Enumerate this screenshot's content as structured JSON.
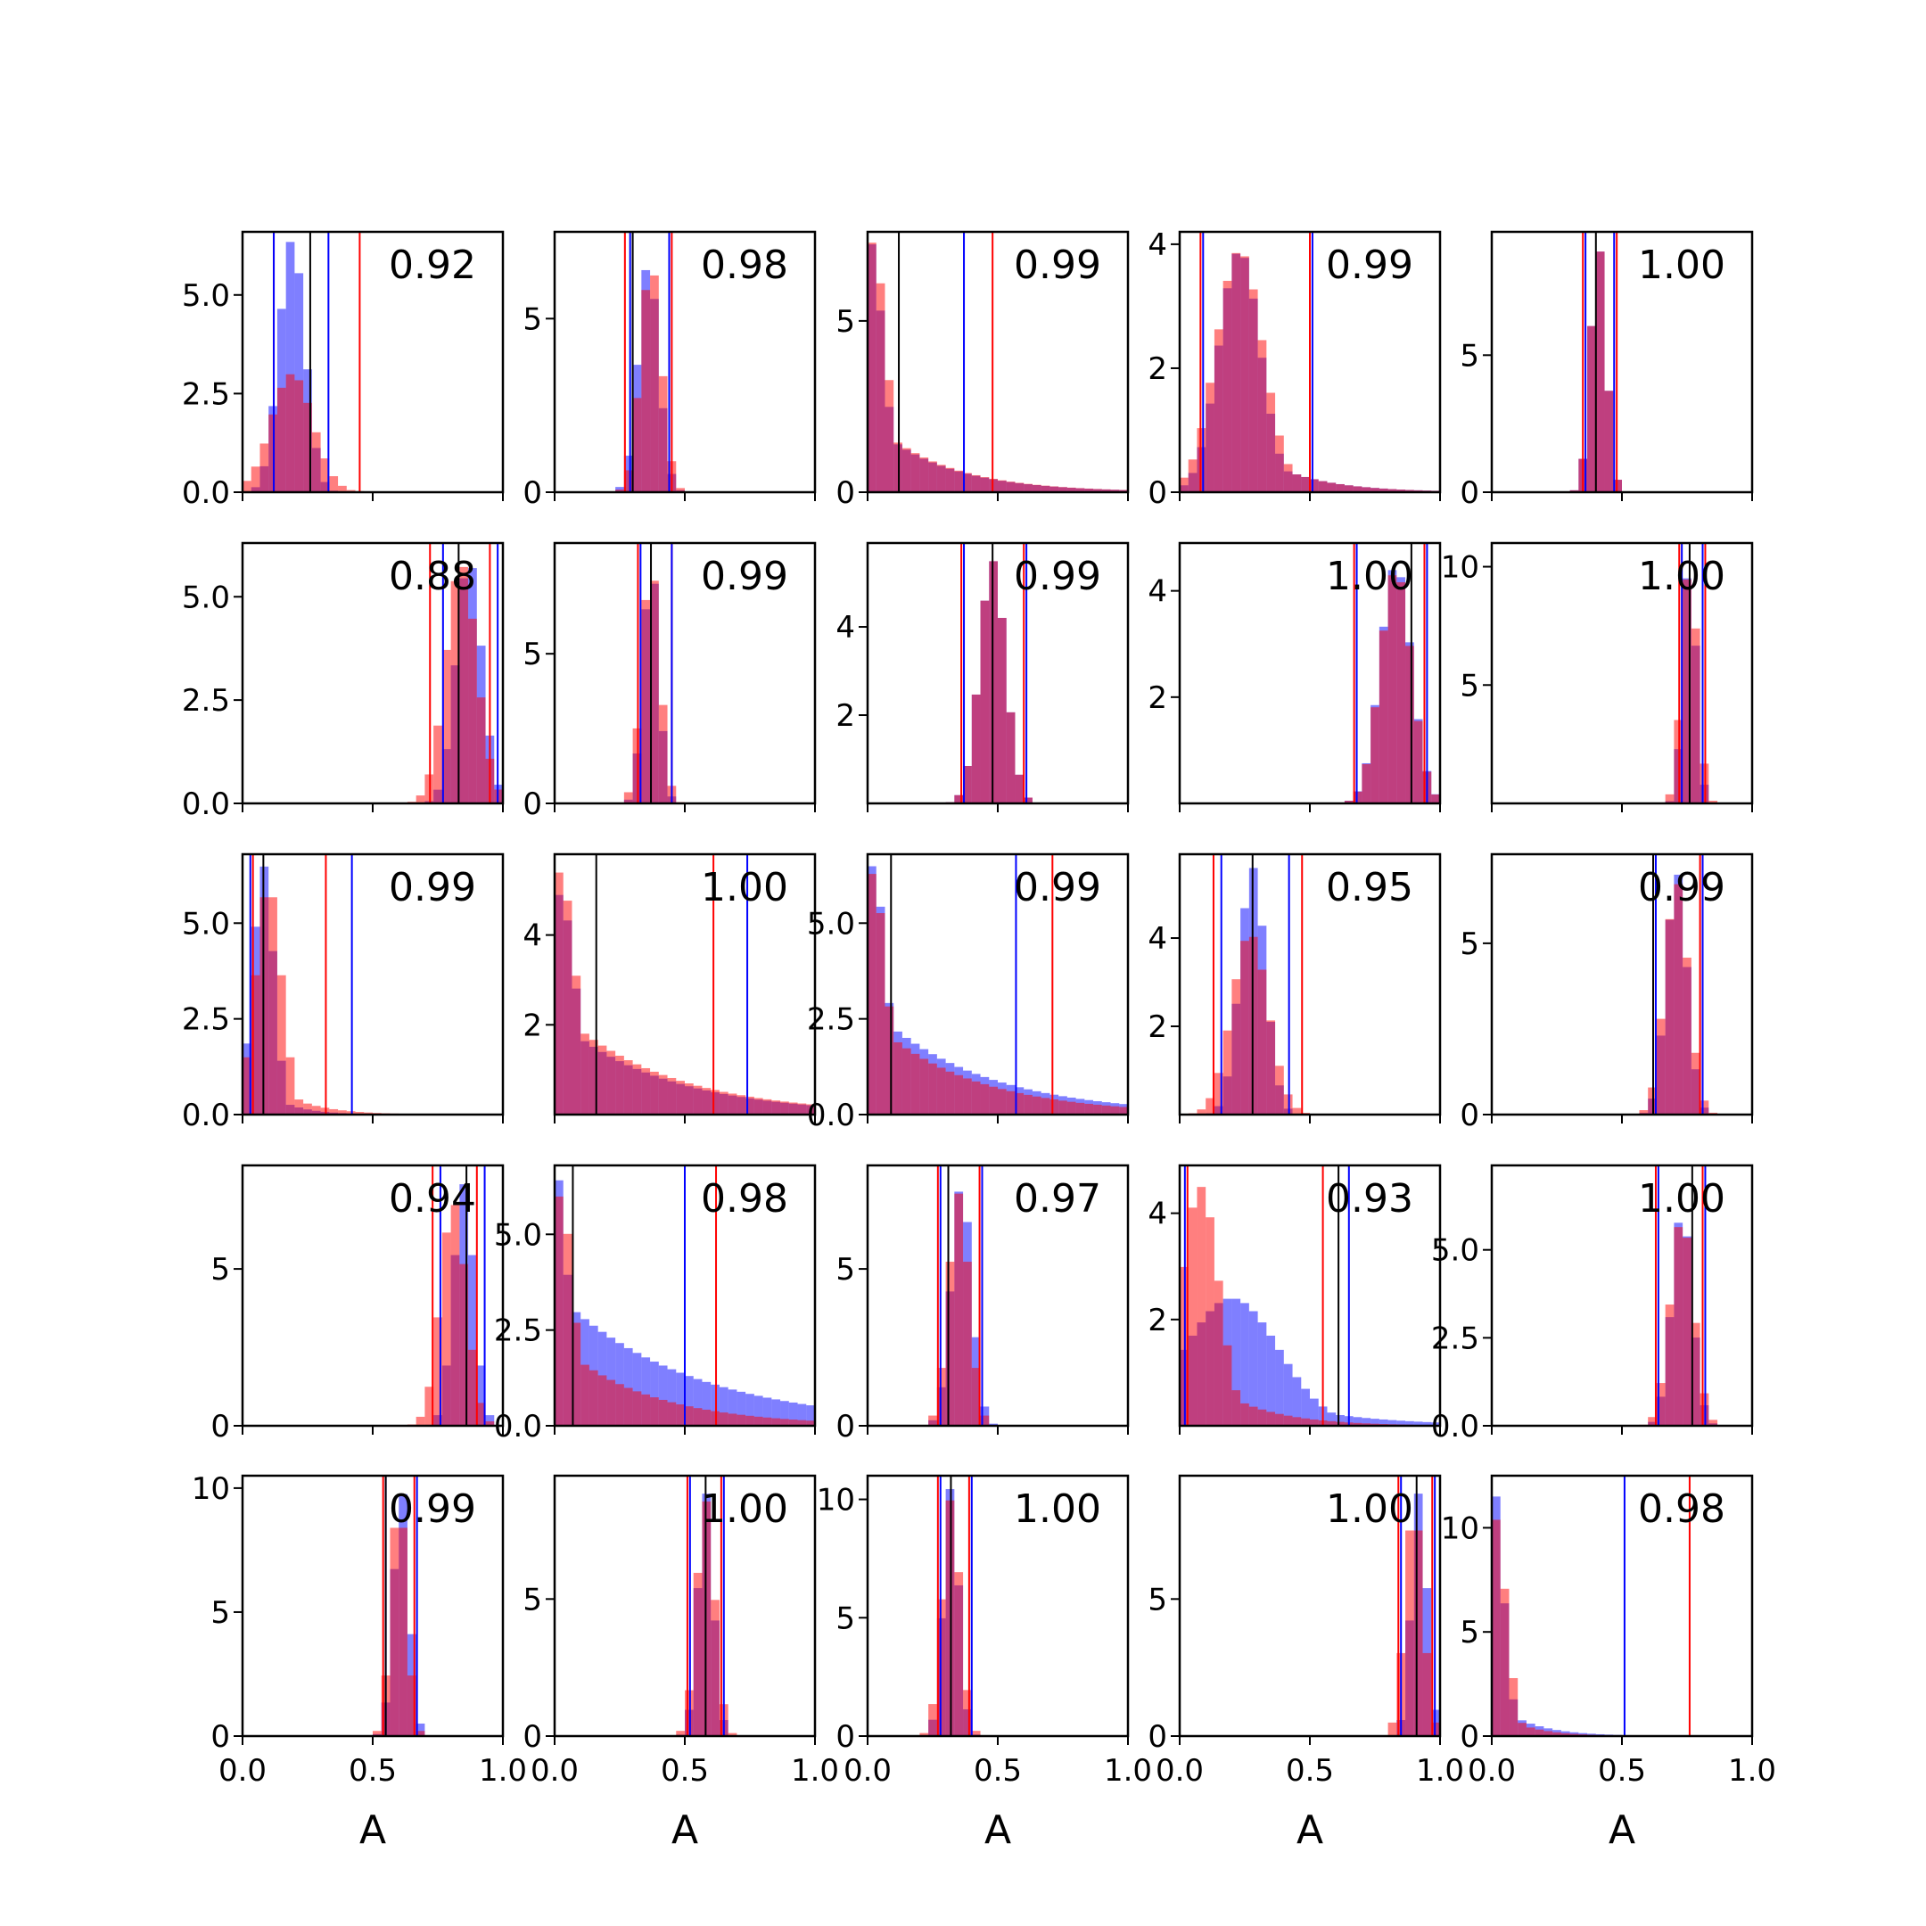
{
  "figure": {
    "rows": 5,
    "cols": 5,
    "xlabel": "A"
  },
  "colors": {
    "series_a": "#0000ff",
    "series_b": "#ff0000",
    "overlap": "#b0306a",
    "median": "#000000"
  },
  "chart_data": [
    {
      "type": "histogram",
      "row": 0,
      "col": 0,
      "annotation": "0.92",
      "ylim": [
        0,
        6.6
      ],
      "yticks": [
        "0.0",
        "2.5",
        "5.0"
      ],
      "ytick_values": [
        0,
        2.5,
        5.0
      ],
      "xlim": [
        0,
        1
      ],
      "blue": {
        "peak": 0.19,
        "width": 0.05,
        "height": 6.4,
        "tail": 0.15
      },
      "red": {
        "peak": 0.19,
        "width": 0.08,
        "height": 3.0,
        "tail": 0.3
      },
      "lines": {
        "red": [
          0.12,
          0.45
        ],
        "blue": [
          0.12,
          0.33
        ],
        "black": [
          0.26
        ]
      }
    },
    {
      "type": "histogram",
      "row": 0,
      "col": 1,
      "annotation": "0.98",
      "ylim": [
        0,
        7.5
      ],
      "yticks": [
        "0",
        "5"
      ],
      "ytick_values": [
        0,
        5
      ],
      "xlim": [
        0,
        1
      ],
      "blue": {
        "peak": 0.36,
        "width": 0.04,
        "height": 6.6,
        "tail": 0
      },
      "red": {
        "peak": 0.37,
        "width": 0.04,
        "height": 6.6,
        "tail": 0
      },
      "lines": {
        "red": [
          0.27,
          0.45
        ],
        "blue": [
          0.29,
          0.44
        ],
        "black": [
          0.3
        ]
      }
    },
    {
      "type": "histogram",
      "row": 0,
      "col": 2,
      "annotation": "0.99",
      "ylim": [
        0,
        7.6
      ],
      "yticks": [
        "0",
        "5"
      ],
      "ytick_values": [
        0,
        5
      ],
      "xlim": [
        0,
        1
      ],
      "blue": {
        "peak": 0.01,
        "width": 0.05,
        "height": 7.3,
        "tail": 0.8
      },
      "red": {
        "peak": 0.02,
        "width": 0.05,
        "height": 7.3,
        "tail": 0.8
      },
      "lines": {
        "red": [
          0.48
        ],
        "blue": [
          0.37
        ],
        "black": [
          0.12
        ]
      }
    },
    {
      "type": "histogram",
      "row": 0,
      "col": 3,
      "annotation": "0.99",
      "ylim": [
        0,
        4.2
      ],
      "yticks": [
        "0",
        "2",
        "4"
      ],
      "ytick_values": [
        0,
        2,
        4
      ],
      "xlim": [
        0,
        1
      ],
      "blue": {
        "peak": 0.23,
        "width": 0.08,
        "height": 3.9,
        "tail": 0.6
      },
      "red": {
        "peak": 0.23,
        "width": 0.09,
        "height": 3.9,
        "tail": 0.6
      },
      "lines": {
        "red": [
          0.08,
          0.5
        ],
        "blue": [
          0.09,
          0.51
        ],
        "black": []
      }
    },
    {
      "type": "histogram",
      "row": 0,
      "col": 4,
      "annotation": "1.00",
      "ylim": [
        0,
        9.5
      ],
      "yticks": [
        "0",
        "5"
      ],
      "ytick_values": [
        0,
        5
      ],
      "xlim": [
        0,
        1
      ],
      "blue": {
        "peak": 0.41,
        "width": 0.03,
        "height": 9.0,
        "tail": 0
      },
      "red": {
        "peak": 0.41,
        "width": 0.03,
        "height": 9.0,
        "tail": 0
      },
      "lines": {
        "red": [
          0.35,
          0.48
        ],
        "blue": [
          0.36,
          0.47
        ],
        "black": [
          0.4
        ]
      }
    },
    {
      "type": "histogram",
      "row": 1,
      "col": 0,
      "annotation": "0.88",
      "ylim": [
        0,
        6.3
      ],
      "yticks": [
        "0.0",
        "2.5",
        "5.0"
      ],
      "ytick_values": [
        0,
        2.5,
        5.0
      ],
      "xlim": [
        0,
        1
      ],
      "blue": {
        "peak": 0.87,
        "width": 0.05,
        "height": 5.9,
        "tail": 0
      },
      "red": {
        "peak": 0.84,
        "width": 0.06,
        "height": 5.8,
        "tail": 0
      },
      "lines": {
        "red": [
          0.72,
          0.95
        ],
        "blue": [
          0.77,
          0.98
        ],
        "black": [
          0.83
        ]
      }
    },
    {
      "type": "histogram",
      "row": 1,
      "col": 1,
      "annotation": "0.99",
      "ylim": [
        0,
        8.7
      ],
      "yticks": [
        "0",
        "5"
      ],
      "ytick_values": [
        0,
        5
      ],
      "xlim": [
        0,
        1
      ],
      "blue": {
        "peak": 0.37,
        "width": 0.03,
        "height": 8.1,
        "tail": 0
      },
      "red": {
        "peak": 0.37,
        "width": 0.035,
        "height": 8.0,
        "tail": 0
      },
      "lines": {
        "red": [
          0.32,
          0.45
        ],
        "blue": [
          0.33,
          0.45
        ],
        "black": [
          0.37
        ]
      }
    },
    {
      "type": "histogram",
      "row": 1,
      "col": 2,
      "annotation": "0.99",
      "ylim": [
        0,
        5.9
      ],
      "yticks": [
        "2",
        "4"
      ],
      "ytick_values": [
        2,
        4
      ],
      "xlim": [
        0,
        1
      ],
      "blue": {
        "peak": 0.48,
        "width": 0.05,
        "height": 5.5,
        "tail": 0
      },
      "red": {
        "peak": 0.48,
        "width": 0.05,
        "height": 5.5,
        "tail": 0
      },
      "lines": {
        "red": [
          0.36,
          0.6
        ],
        "blue": [
          0.37,
          0.61
        ],
        "black": [
          0.48
        ]
      }
    },
    {
      "type": "histogram",
      "row": 1,
      "col": 3,
      "annotation": "1.00",
      "ylim": [
        0,
        4.9
      ],
      "yticks": [
        "2",
        "4"
      ],
      "ytick_values": [
        2,
        4
      ],
      "xlim": [
        0,
        1
      ],
      "blue": {
        "peak": 0.83,
        "width": 0.06,
        "height": 4.5,
        "tail": 0
      },
      "red": {
        "peak": 0.83,
        "width": 0.06,
        "height": 4.4,
        "tail": 0
      },
      "lines": {
        "red": [
          0.67,
          0.94
        ],
        "blue": [
          0.68,
          0.95
        ],
        "black": [
          0.89
        ]
      }
    },
    {
      "type": "histogram",
      "row": 1,
      "col": 4,
      "annotation": "1.00",
      "ylim": [
        0,
        11.0
      ],
      "yticks": [
        "5",
        "10"
      ],
      "ytick_values": [
        5,
        10
      ],
      "xlim": [
        0,
        1
      ],
      "blue": {
        "peak": 0.76,
        "width": 0.025,
        "height": 10.3,
        "tail": 0
      },
      "red": {
        "peak": 0.76,
        "width": 0.03,
        "height": 10.0,
        "tail": 0
      },
      "lines": {
        "red": [
          0.72,
          0.82
        ],
        "blue": [
          0.73,
          0.81
        ],
        "black": [
          0.76
        ]
      }
    },
    {
      "type": "histogram",
      "row": 2,
      "col": 0,
      "annotation": "0.99",
      "ylim": [
        0,
        6.8
      ],
      "yticks": [
        "0.0",
        "2.5",
        "5.0"
      ],
      "ytick_values": [
        0,
        2.5,
        5.0
      ],
      "xlim": [
        0,
        1
      ],
      "blue": {
        "peak": 0.08,
        "width": 0.04,
        "height": 6.5,
        "tail": 0.3
      },
      "red": {
        "peak": 0.1,
        "width": 0.05,
        "height": 6.0,
        "tail": 0.4
      },
      "lines": {
        "red": [
          0.04,
          0.32
        ],
        "blue": [
          0.03,
          0.42
        ],
        "black": [
          0.08
        ]
      }
    },
    {
      "type": "histogram",
      "row": 2,
      "col": 1,
      "annotation": "1.00",
      "ylim": [
        0,
        5.8
      ],
      "yticks": [
        "2",
        "4"
      ],
      "ytick_values": [
        2,
        4
      ],
      "xlim": [
        0,
        1
      ],
      "blue": {
        "peak": 0.02,
        "width": 0.06,
        "height": 4.9,
        "tail": 1.2
      },
      "red": {
        "peak": 0.02,
        "width": 0.06,
        "height": 5.4,
        "tail": 1.2
      },
      "lines": {
        "red": [
          0.61
        ],
        "blue": [
          0.74
        ],
        "black": [
          0.16
        ]
      }
    },
    {
      "type": "histogram",
      "row": 2,
      "col": 2,
      "annotation": "0.99",
      "ylim": [
        0,
        6.8
      ],
      "yticks": [
        "0.0",
        "2.5",
        "5.0"
      ],
      "ytick_values": [
        0,
        2.5,
        5.0
      ],
      "xlim": [
        0,
        1
      ],
      "blue": {
        "peak": 0.02,
        "width": 0.05,
        "height": 6.5,
        "tail": 1.2
      },
      "red": {
        "peak": 0.02,
        "width": 0.05,
        "height": 6.3,
        "tail": 1.1
      },
      "lines": {
        "red": [
          0.71
        ],
        "blue": [
          0.57
        ],
        "black": [
          0.09
        ]
      }
    },
    {
      "type": "histogram",
      "row": 2,
      "col": 3,
      "annotation": "0.95",
      "ylim": [
        0,
        5.9
      ],
      "yticks": [
        "2",
        "4"
      ],
      "ytick_values": [
        2,
        4
      ],
      "xlim": [
        0,
        1
      ],
      "blue": {
        "peak": 0.28,
        "width": 0.05,
        "height": 5.6,
        "tail": 0
      },
      "red": {
        "peak": 0.27,
        "width": 0.07,
        "height": 4.1,
        "tail": 0.1
      },
      "lines": {
        "red": [
          0.13,
          0.47
        ],
        "blue": [
          0.16,
          0.42
        ],
        "black": [
          0.28
        ]
      }
    },
    {
      "type": "histogram",
      "row": 2,
      "col": 4,
      "annotation": "0.99",
      "ylim": [
        0,
        7.6
      ],
      "yticks": [
        "0",
        "5"
      ],
      "ytick_values": [
        0,
        5
      ],
      "xlim": [
        0,
        1
      ],
      "blue": {
        "peak": 0.71,
        "width": 0.04,
        "height": 7.1,
        "tail": 0
      },
      "red": {
        "peak": 0.71,
        "width": 0.045,
        "height": 6.8,
        "tail": 0
      },
      "lines": {
        "red": [
          0.62,
          0.8
        ],
        "blue": [
          0.63,
          0.81
        ],
        "black": [
          0.62
        ]
      }
    },
    {
      "type": "histogram",
      "row": 3,
      "col": 0,
      "annotation": "0.94",
      "ylim": [
        0,
        8.3
      ],
      "yticks": [
        "0",
        "5"
      ],
      "ytick_values": [
        0,
        5
      ],
      "xlim": [
        0,
        1
      ],
      "blue": {
        "peak": 0.85,
        "width": 0.04,
        "height": 7.7,
        "tail": 0
      },
      "red": {
        "peak": 0.81,
        "width": 0.05,
        "height": 7.1,
        "tail": 0
      },
      "lines": {
        "red": [
          0.73,
          0.9
        ],
        "blue": [
          0.76,
          0.93
        ],
        "black": [
          0.86
        ]
      }
    },
    {
      "type": "histogram",
      "row": 3,
      "col": 1,
      "annotation": "0.98",
      "ylim": [
        0,
        6.8
      ],
      "yticks": [
        "0.0",
        "2.5",
        "5.0"
      ],
      "ytick_values": [
        0,
        2.5,
        5.0
      ],
      "xlim": [
        0,
        1
      ],
      "blue": {
        "peak": 0.01,
        "width": 0.04,
        "height": 6.5,
        "tail": 1.5
      },
      "red": {
        "peak": 0.02,
        "width": 0.05,
        "height": 6.0,
        "tail": 1.0
      },
      "lines": {
        "red": [
          0.62
        ],
        "blue": [
          0.5
        ],
        "black": [
          0.07
        ]
      }
    },
    {
      "type": "histogram",
      "row": 3,
      "col": 2,
      "annotation": "0.97",
      "ylim": [
        0,
        8.3
      ],
      "yticks": [
        "0",
        "5"
      ],
      "ytick_values": [
        0,
        5
      ],
      "xlim": [
        0,
        1
      ],
      "blue": {
        "peak": 0.36,
        "width": 0.04,
        "height": 7.7,
        "tail": 0
      },
      "red": {
        "peak": 0.35,
        "width": 0.04,
        "height": 7.4,
        "tail": 0
      },
      "lines": {
        "red": [
          0.27,
          0.43
        ],
        "blue": [
          0.28,
          0.44
        ],
        "black": [
          0.31
        ]
      }
    },
    {
      "type": "histogram",
      "row": 3,
      "col": 3,
      "annotation": "0.93",
      "ylim": [
        0,
        4.9
      ],
      "yticks": [
        "2",
        "4"
      ],
      "ytick_values": [
        2,
        4
      ],
      "xlim": [
        0,
        1
      ],
      "blue": {
        "peak": 0.2,
        "width": 0.18,
        "height": 2.4,
        "tail": 0.9
      },
      "red": {
        "peak": 0.08,
        "width": 0.07,
        "height": 4.5,
        "tail": 0.6
      },
      "lines": {
        "red": [
          0.03,
          0.55
        ],
        "blue": [
          0.02,
          0.65
        ],
        "black": [
          0.61
        ]
      }
    },
    {
      "type": "histogram",
      "row": 3,
      "col": 4,
      "annotation": "1.00",
      "ylim": [
        0,
        7.4
      ],
      "yticks": [
        "0.0",
        "2.5",
        "5.0"
      ],
      "ytick_values": [
        0,
        2.5,
        5.0
      ],
      "xlim": [
        0,
        1
      ],
      "blue": {
        "peak": 0.73,
        "width": 0.04,
        "height": 6.1,
        "tail": 0
      },
      "red": {
        "peak": 0.73,
        "width": 0.045,
        "height": 5.9,
        "tail": 0
      },
      "lines": {
        "red": [
          0.63,
          0.81
        ],
        "blue": [
          0.64,
          0.82
        ],
        "black": [
          0.77
        ]
      }
    },
    {
      "type": "histogram",
      "row": 4,
      "col": 0,
      "annotation": "0.99",
      "ylim": [
        0,
        10.5
      ],
      "yticks": [
        "0",
        "5",
        "10"
      ],
      "ytick_values": [
        0,
        5,
        10
      ],
      "xlim": [
        0,
        1
      ],
      "blue": {
        "peak": 0.61,
        "width": 0.03,
        "height": 10.0,
        "tail": 0
      },
      "red": {
        "peak": 0.6,
        "width": 0.03,
        "height": 9.8,
        "tail": 0
      },
      "lines": {
        "red": [
          0.54,
          0.66
        ],
        "blue": [
          0.55,
          0.67
        ],
        "black": [
          0.55
        ]
      }
    },
    {
      "type": "histogram",
      "row": 4,
      "col": 1,
      "annotation": "1.00",
      "ylim": [
        0,
        9.5
      ],
      "yticks": [
        "0",
        "5"
      ],
      "ytick_values": [
        0,
        5
      ],
      "xlim": [
        0,
        1
      ],
      "blue": {
        "peak": 0.58,
        "width": 0.03,
        "height": 8.9,
        "tail": 0
      },
      "red": {
        "peak": 0.58,
        "width": 0.035,
        "height": 8.6,
        "tail": 0
      },
      "lines": {
        "red": [
          0.51,
          0.64
        ],
        "blue": [
          0.52,
          0.65
        ],
        "black": [
          0.58
        ]
      }
    },
    {
      "type": "histogram",
      "row": 4,
      "col": 2,
      "annotation": "1.00",
      "ylim": [
        0,
        11.0
      ],
      "yticks": [
        "0",
        "5",
        "10"
      ],
      "ytick_values": [
        0,
        5,
        10
      ],
      "xlim": [
        0,
        1
      ],
      "blue": {
        "peak": 0.32,
        "width": 0.03,
        "height": 10.5,
        "tail": 0
      },
      "red": {
        "peak": 0.32,
        "width": 0.035,
        "height": 10.0,
        "tail": 0
      },
      "lines": {
        "red": [
          0.27,
          0.39
        ],
        "blue": [
          0.28,
          0.4
        ],
        "black": [
          0.32
        ]
      }
    },
    {
      "type": "histogram",
      "row": 4,
      "col": 3,
      "annotation": "1.00",
      "ylim": [
        0,
        9.5
      ],
      "yticks": [
        "0",
        "5"
      ],
      "ytick_values": [
        0,
        5
      ],
      "xlim": [
        0,
        1
      ],
      "blue": {
        "peak": 0.92,
        "width": 0.03,
        "height": 8.9,
        "tail": 0
      },
      "red": {
        "peak": 0.9,
        "width": 0.035,
        "height": 8.4,
        "tail": 0
      },
      "lines": {
        "red": [
          0.84,
          0.97
        ],
        "blue": [
          0.85,
          0.98
        ],
        "black": [
          0.91
        ]
      }
    },
    {
      "type": "histogram",
      "row": 4,
      "col": 4,
      "annotation": "0.98",
      "ylim": [
        0,
        12.5
      ],
      "yticks": [
        "0",
        "5",
        "10"
      ],
      "ytick_values": [
        0,
        5,
        10
      ],
      "xlim": [
        0,
        1
      ],
      "blue": {
        "peak": 0.005,
        "width": 0.04,
        "height": 12.0,
        "tail": 0.4
      },
      "red": {
        "peak": 0.01,
        "width": 0.045,
        "height": 10.5,
        "tail": 0.35
      },
      "lines": {
        "red": [
          0.76
        ],
        "blue": [
          0.51
        ],
        "black": []
      }
    }
  ],
  "xticks": {
    "labels": [
      "0.0",
      "0.5",
      "1.0"
    ],
    "values": [
      0,
      0.5,
      1.0
    ]
  }
}
